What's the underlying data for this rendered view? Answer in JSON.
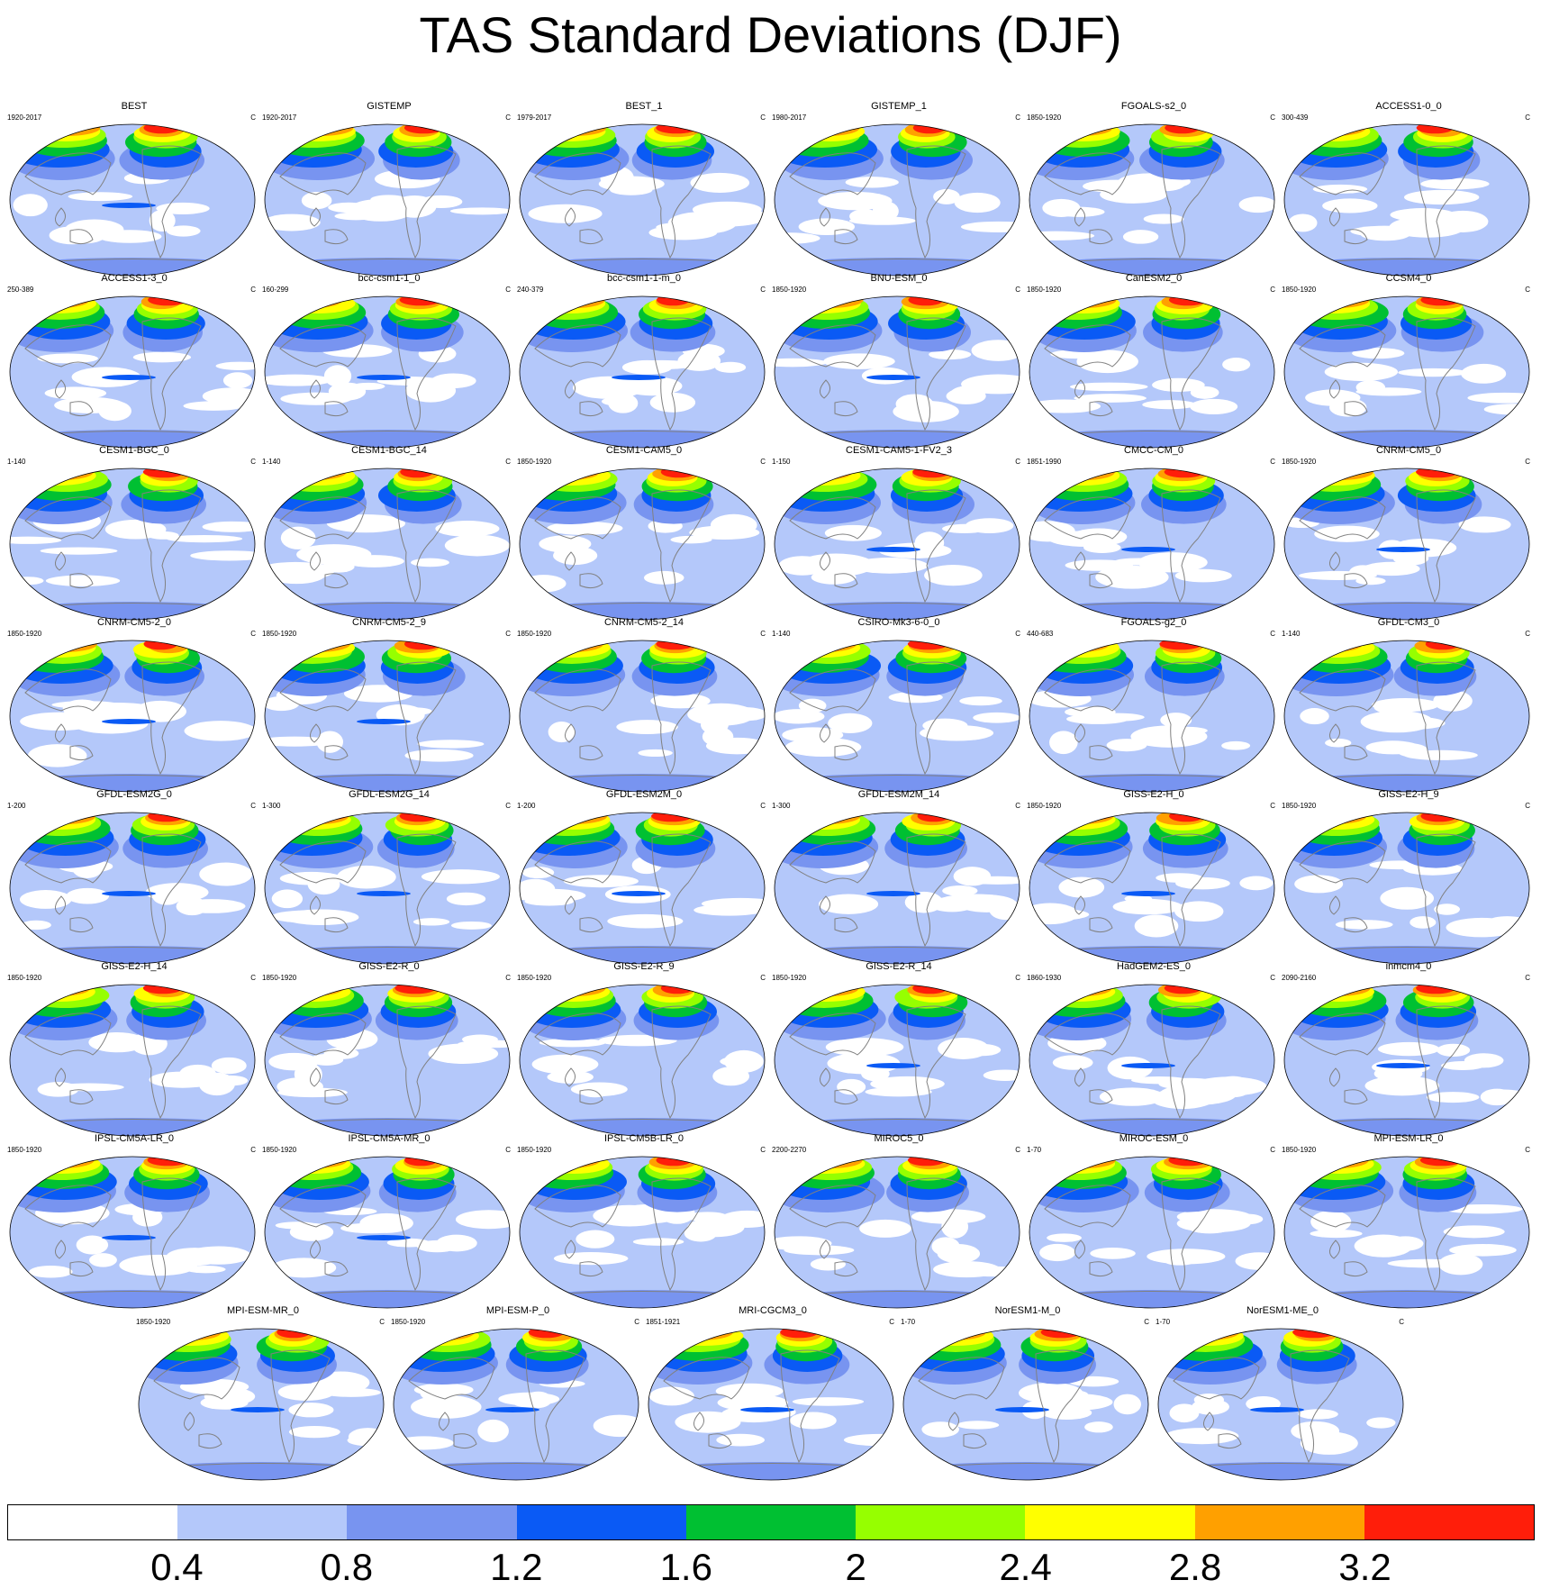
{
  "title": "TAS Standard Deviations (DJF)",
  "unit": "C",
  "colors": {
    "levels": [
      "#ffffff",
      "#b4c8fa",
      "#7894f0",
      "#0a5af5",
      "#00c032",
      "#96ff00",
      "#ffff00",
      "#ffa000",
      "#ff1e0a"
    ],
    "land_outline": "#808080"
  },
  "colorbar": {
    "ticks": [
      "0.4",
      "0.8",
      "1.2",
      "1.6",
      "2",
      "2.4",
      "2.8",
      "3.2"
    ]
  },
  "panels": [
    {
      "name": "BEST",
      "period": "1920-2017"
    },
    {
      "name": "GISTEMP",
      "period": "1920-2017"
    },
    {
      "name": "BEST_1",
      "period": "1979-2017"
    },
    {
      "name": "GISTEMP_1",
      "period": "1980-2017"
    },
    {
      "name": "FGOALS-s2_0",
      "period": "1850-1920"
    },
    {
      "name": "ACCESS1-0_0",
      "period": "300-439"
    },
    {
      "name": "ACCESS1-3_0",
      "period": "250-389"
    },
    {
      "name": "bcc-csm1-1_0",
      "period": "160-299"
    },
    {
      "name": "bcc-csm1-1-m_0",
      "period": "240-379"
    },
    {
      "name": "BNU-ESM_0",
      "period": "1850-1920"
    },
    {
      "name": "CanESM2_0",
      "period": "1850-1920"
    },
    {
      "name": "CCSM4_0",
      "period": "1850-1920"
    },
    {
      "name": "CESM1-BGC_0",
      "period": "1-140"
    },
    {
      "name": "CESM1-BGC_14",
      "period": "1-140"
    },
    {
      "name": "CESM1-CAM5_0",
      "period": "1850-1920"
    },
    {
      "name": "CESM1-CAM5-1-FV2_3",
      "period": "1-150"
    },
    {
      "name": "CMCC-CM_0",
      "period": "1851-1990"
    },
    {
      "name": "CNRM-CM5_0",
      "period": "1850-1920"
    },
    {
      "name": "CNRM-CM5-2_0",
      "period": "1850-1920"
    },
    {
      "name": "CNRM-CM5-2_9",
      "period": "1850-1920"
    },
    {
      "name": "CNRM-CM5-2_14",
      "period": "1850-1920"
    },
    {
      "name": "CSIRO-Mk3-6-0_0",
      "period": "1-140"
    },
    {
      "name": "FGOALS-g2_0",
      "period": "440-683"
    },
    {
      "name": "GFDL-CM3_0",
      "period": "1-140"
    },
    {
      "name": "GFDL-ESM2G_0",
      "period": "1-200"
    },
    {
      "name": "GFDL-ESM2G_14",
      "period": "1-300"
    },
    {
      "name": "GFDL-ESM2M_0",
      "period": "1-200"
    },
    {
      "name": "GFDL-ESM2M_14",
      "period": "1-300"
    },
    {
      "name": "GISS-E2-H_0",
      "period": "1850-1920"
    },
    {
      "name": "GISS-E2-H_9",
      "period": "1850-1920"
    },
    {
      "name": "GISS-E2-H_14",
      "period": "1850-1920"
    },
    {
      "name": "GISS-E2-R_0",
      "period": "1850-1920"
    },
    {
      "name": "GISS-E2-R_9",
      "period": "1850-1920"
    },
    {
      "name": "GISS-E2-R_14",
      "period": "1850-1920"
    },
    {
      "name": "HadGEM2-ES_0",
      "period": "1860-1930"
    },
    {
      "name": "inmcm4_0",
      "period": "2090-2160"
    },
    {
      "name": "IPSL-CM5A-LR_0",
      "period": "1850-1920"
    },
    {
      "name": "IPSL-CM5A-MR_0",
      "period": "1850-1920"
    },
    {
      "name": "IPSL-CM5B-LR_0",
      "period": "1850-1920"
    },
    {
      "name": "MIROC5_0",
      "period": "2200-2270"
    },
    {
      "name": "MIROC-ESM_0",
      "period": "1-70"
    },
    {
      "name": "MPI-ESM-LR_0",
      "period": "1850-1920"
    },
    {
      "name": "MPI-ESM-MR_0",
      "period": "1850-1920"
    },
    {
      "name": "MPI-ESM-P_0",
      "period": "1850-1920"
    },
    {
      "name": "MRI-CGCM3_0",
      "period": "1851-1921"
    },
    {
      "name": "NorESM1-M_0",
      "period": "1-70"
    },
    {
      "name": "NorESM1-ME_0",
      "period": "1-70"
    }
  ]
}
